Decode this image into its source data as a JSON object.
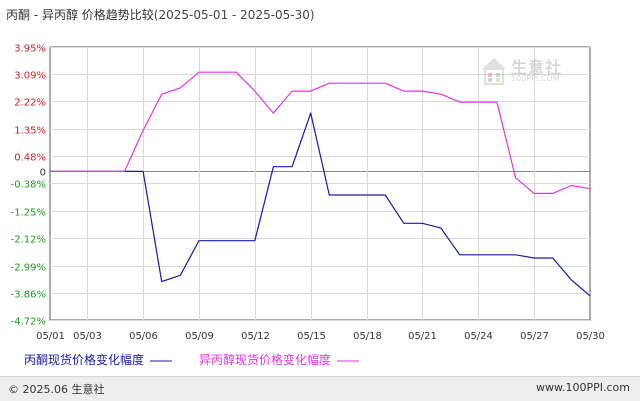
{
  "title": {
    "main": "丙酮 - 异丙醇 价格趋势比较",
    "range": "(2025-05-01 - 2025-05-30)"
  },
  "chart_data": {
    "type": "line",
    "x": [
      "05/01",
      "05/02",
      "05/03",
      "05/04",
      "05/05",
      "05/06",
      "05/07",
      "05/08",
      "05/09",
      "05/10",
      "05/11",
      "05/12",
      "05/13",
      "05/14",
      "05/15",
      "05/16",
      "05/17",
      "05/18",
      "05/19",
      "05/20",
      "05/21",
      "05/22",
      "05/23",
      "05/24",
      "05/25",
      "05/26",
      "05/27",
      "05/28",
      "05/29",
      "05/30"
    ],
    "x_tick_labels": [
      "05/01",
      "05/03",
      "05/06",
      "05/09",
      "05/12",
      "05/15",
      "05/18",
      "05/21",
      "05/24",
      "05/27",
      "05/30"
    ],
    "y_tick_labels": [
      "3.95%",
      "3.09%",
      "2.22%",
      "1.35%",
      "0.48%",
      "0",
      "-0.38%",
      "-1.25%",
      "-2.12%",
      "-2.99%",
      "-3.86%",
      "-4.72%"
    ],
    "y_ticks": [
      3.95,
      3.09,
      2.22,
      1.35,
      0.48,
      0,
      -0.38,
      -1.25,
      -2.12,
      -2.99,
      -3.86,
      -4.72
    ],
    "ylim": [
      -4.72,
      3.95
    ],
    "grid": true,
    "legend_position": "bottom",
    "series": [
      {
        "name": "丙酮现货价格变化幅度",
        "color": "#1a1aa6",
        "values": [
          0,
          0,
          0,
          0,
          0,
          0,
          -3.5,
          -3.3,
          -2.2,
          -2.2,
          -2.2,
          -2.2,
          0.15,
          0.15,
          1.85,
          -0.75,
          -0.75,
          -0.75,
          -0.75,
          -1.65,
          -1.65,
          -1.8,
          -2.65,
          -2.65,
          -2.65,
          -2.65,
          -2.75,
          -2.75,
          -3.45,
          -3.95
        ]
      },
      {
        "name": "异丙醇现货价格变化幅度",
        "color": "#e633e6",
        "values": [
          0,
          0,
          0,
          0,
          0,
          1.3,
          2.45,
          2.65,
          3.15,
          3.15,
          3.15,
          2.55,
          1.85,
          2.55,
          2.55,
          2.8,
          2.8,
          2.8,
          2.8,
          2.55,
          2.55,
          2.45,
          2.2,
          2.2,
          2.2,
          -0.2,
          -0.7,
          -0.7,
          -0.45,
          -0.55
        ]
      }
    ]
  },
  "footer": {
    "copyright": "© 2025.06 生意社",
    "url": "www.100PPI.com"
  },
  "watermark": {
    "name": "生意社",
    "url": "100PPI.COM"
  }
}
